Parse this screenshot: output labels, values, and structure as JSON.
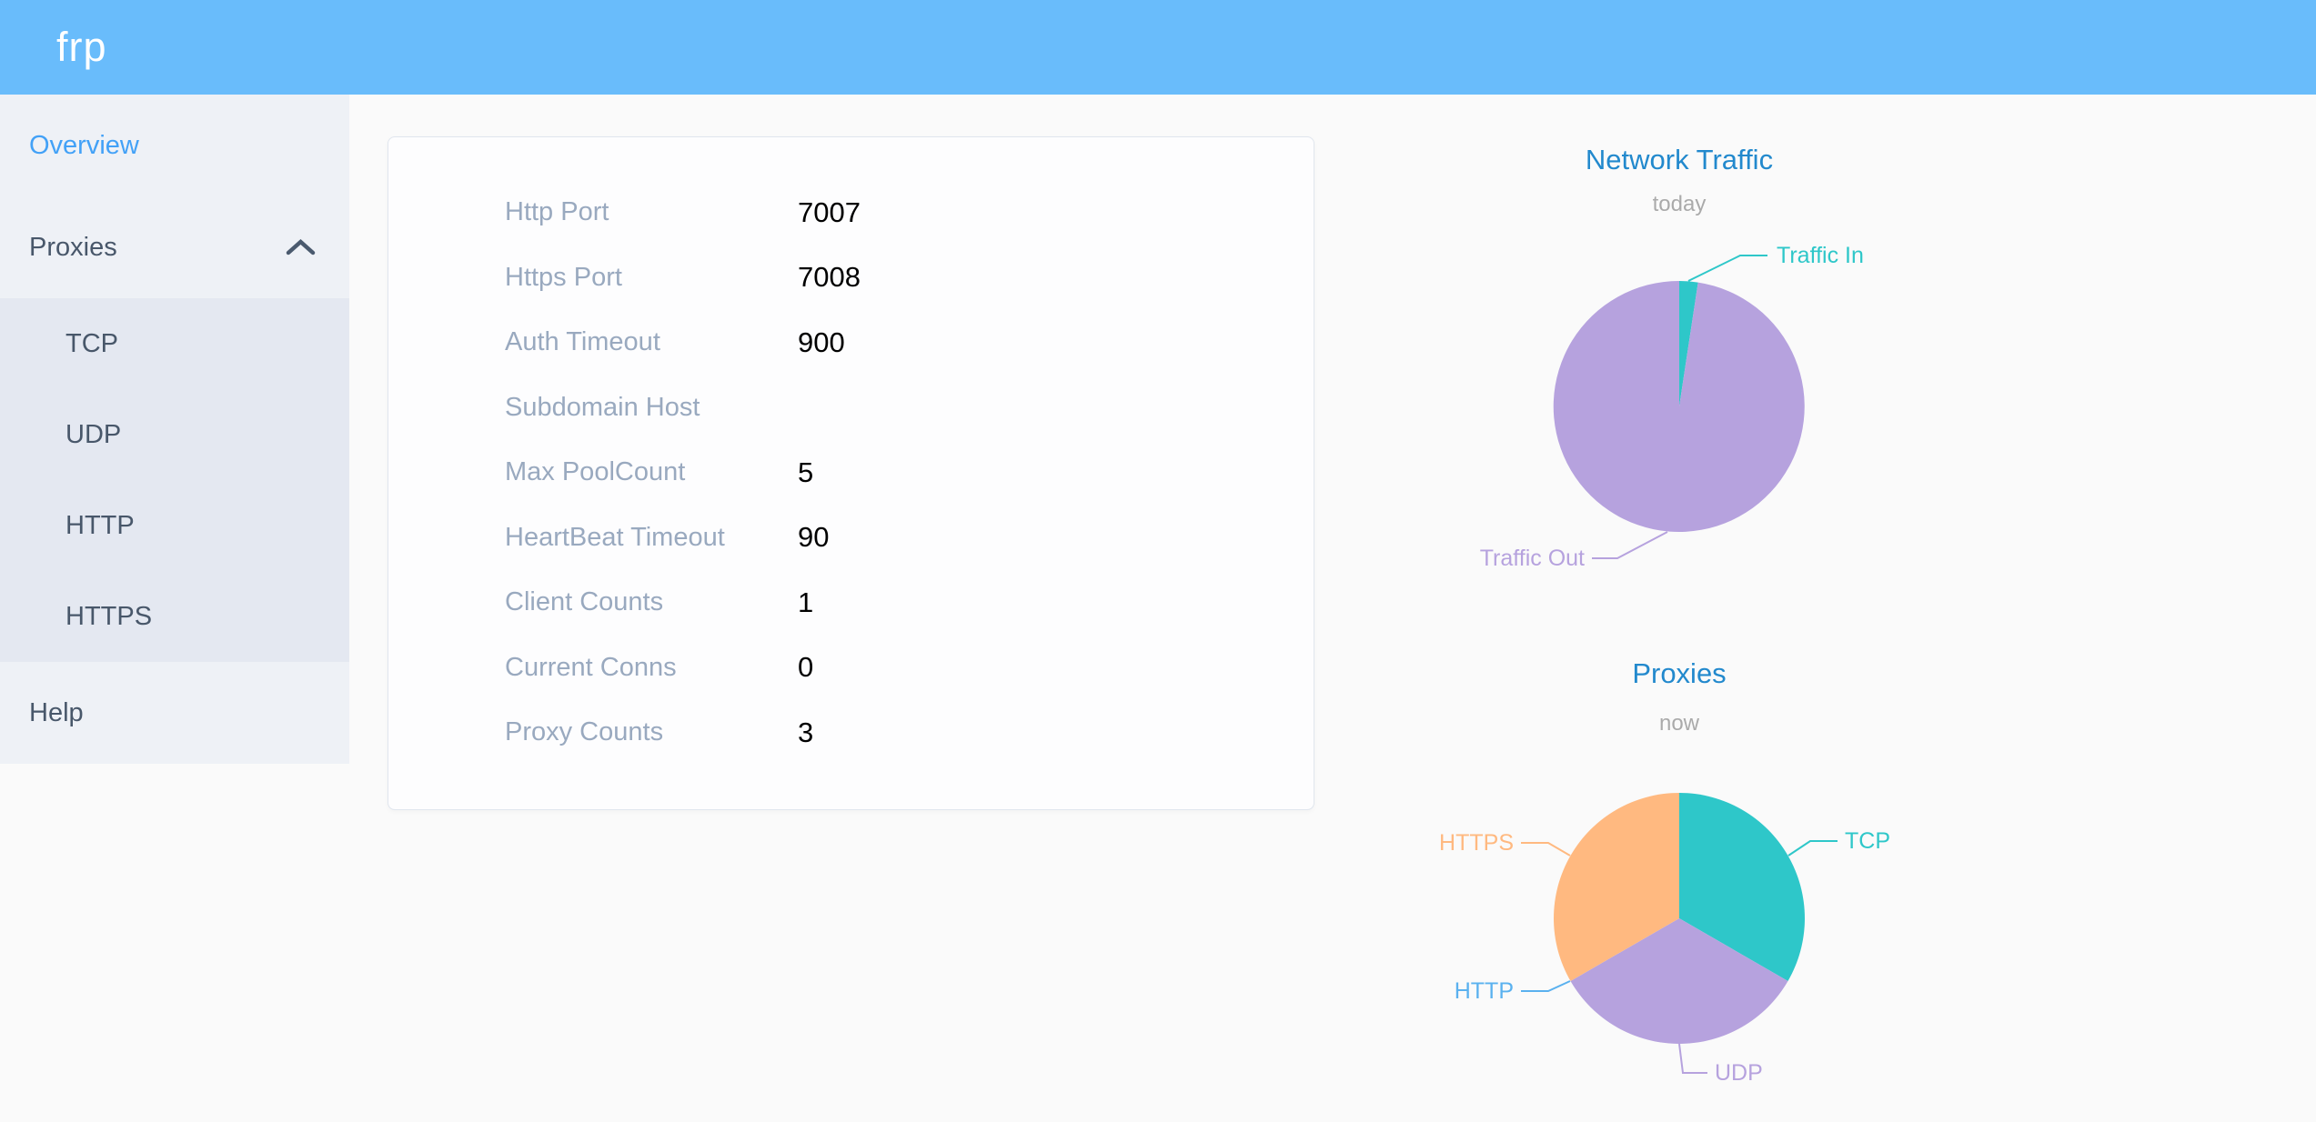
{
  "header": {
    "logo_text": "frp"
  },
  "sidebar": {
    "items": [
      {
        "label": "Overview",
        "active": true
      },
      {
        "label": "Proxies",
        "expanded": true,
        "children": [
          {
            "label": "TCP"
          },
          {
            "label": "UDP"
          },
          {
            "label": "HTTP"
          },
          {
            "label": "HTTPS"
          }
        ]
      },
      {
        "label": "Help"
      }
    ]
  },
  "overview_card": {
    "rows": [
      {
        "label": "Http Port",
        "value": "7007"
      },
      {
        "label": "Https Port",
        "value": "7008"
      },
      {
        "label": "Auth Timeout",
        "value": "900"
      },
      {
        "label": "Subdomain Host",
        "value": ""
      },
      {
        "label": "Max PoolCount",
        "value": "5"
      },
      {
        "label": "HeartBeat Timeout",
        "value": "90"
      },
      {
        "label": "Client Counts",
        "value": "1"
      },
      {
        "label": "Current Conns",
        "value": "0"
      },
      {
        "label": "Proxy Counts",
        "value": "3"
      }
    ]
  },
  "chart_data": [
    {
      "type": "pie",
      "id": "network-traffic",
      "title": "Network Traffic",
      "subtitle": "today",
      "values_are_percent_estimated_from_angles": true,
      "label_position": "outside",
      "legend": "none",
      "slices": [
        {
          "name": "Traffic In",
          "value": 2.4,
          "color": "#2ec7c9"
        },
        {
          "name": "Traffic Out",
          "value": 97.6,
          "color": "#b6a2de"
        }
      ]
    },
    {
      "type": "pie",
      "id": "proxies",
      "title": "Proxies",
      "subtitle": "now",
      "label_position": "outside",
      "legend": "none",
      "slices": [
        {
          "name": "TCP",
          "value": 1,
          "color": "#2ec7c9"
        },
        {
          "name": "UDP",
          "value": 1,
          "color": "#b6a2de"
        },
        {
          "name": "HTTP",
          "value": 0,
          "color": "#5ab1ef"
        },
        {
          "name": "HTTPS",
          "value": 1,
          "color": "#ffb980"
        }
      ]
    }
  ],
  "colors": {
    "header_bg": "#69bcfb",
    "page_bg": "#fafafa",
    "sidebar_bg": "#eef1f6",
    "submenu_bg": "#e4e8f1",
    "menu_text": "#48576a",
    "menu_active_text": "#42a1f7",
    "card_border": "#e0e6ee",
    "form_label": "#99a9bf",
    "chart_title": "#2289cd",
    "chart_subtitle": "#aaaaaa"
  }
}
